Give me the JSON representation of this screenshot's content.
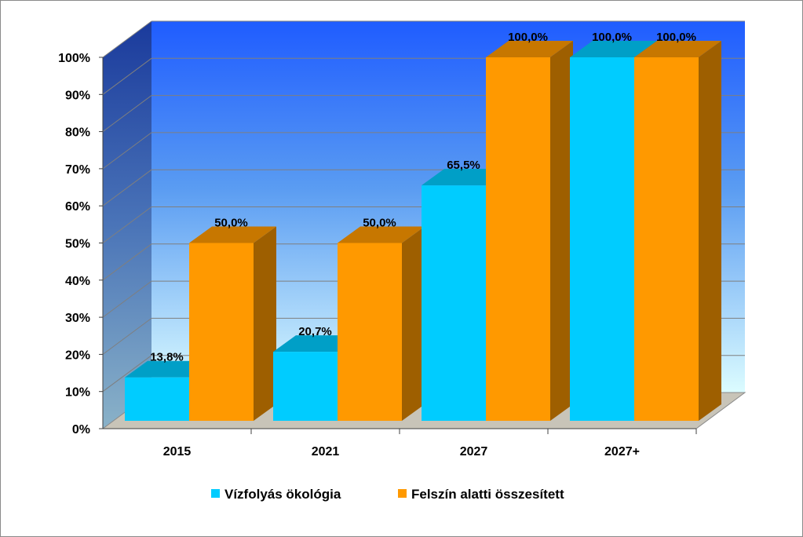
{
  "chart_data": {
    "type": "bar",
    "categories": [
      "2015",
      "2021",
      "2027",
      "2027+"
    ],
    "series": [
      {
        "name": "Vízfolyás ökológia",
        "values": [
          13.8,
          20.7,
          65.5,
          100.0
        ],
        "labels": [
          "13,8%",
          "20,7%",
          "65,5%",
          "100,0%"
        ],
        "color": "#00ccff"
      },
      {
        "name": "Felszín alatti összesített",
        "values": [
          50.0,
          50.0,
          100.0,
          100.0
        ],
        "labels": [
          "50,0%",
          "50,0%",
          "100,0%",
          "100,0%"
        ],
        "color": "#ff9900"
      }
    ],
    "yticks": [
      "0%",
      "10%",
      "20%",
      "30%",
      "40%",
      "50%",
      "60%",
      "70%",
      "80%",
      "90%",
      "100%"
    ],
    "ylim": [
      0,
      100
    ],
    "grid": true,
    "legend": "bottom",
    "three_d": true
  }
}
